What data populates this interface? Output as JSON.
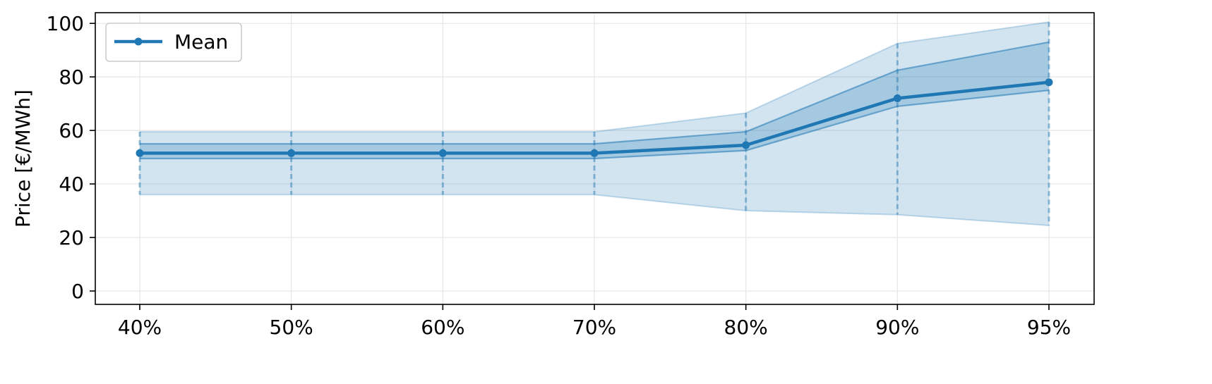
{
  "chart_data": {
    "type": "line",
    "title": "",
    "xlabel": "",
    "ylabel": "Price [€/MWh]",
    "categories": [
      "40%",
      "50%",
      "60%",
      "70%",
      "80%",
      "90%",
      "95%"
    ],
    "ylim": [
      -5,
      104
    ],
    "yticks": [
      0,
      20,
      40,
      60,
      80,
      100
    ],
    "grid": true,
    "legend": {
      "position": "top-left",
      "entries": [
        "Mean"
      ]
    },
    "series": [
      {
        "name": "Mean",
        "values": [
          51.5,
          51.5,
          51.5,
          51.5,
          54.5,
          72,
          78
        ]
      }
    ],
    "bands": {
      "outer": {
        "lower": [
          36,
          36,
          36,
          36,
          30,
          28.5,
          24.5
        ],
        "upper": [
          59.5,
          59.5,
          59.5,
          59.5,
          66.5,
          92.5,
          100.5
        ]
      },
      "inner": {
        "lower": [
          49.5,
          49.5,
          49.5,
          49.5,
          52.5,
          69,
          75
        ],
        "upper": [
          55,
          55,
          55,
          55,
          59.5,
          82.5,
          93
        ]
      }
    },
    "colors": {
      "line": "#1f77b4",
      "band": "#1f77b4"
    }
  }
}
